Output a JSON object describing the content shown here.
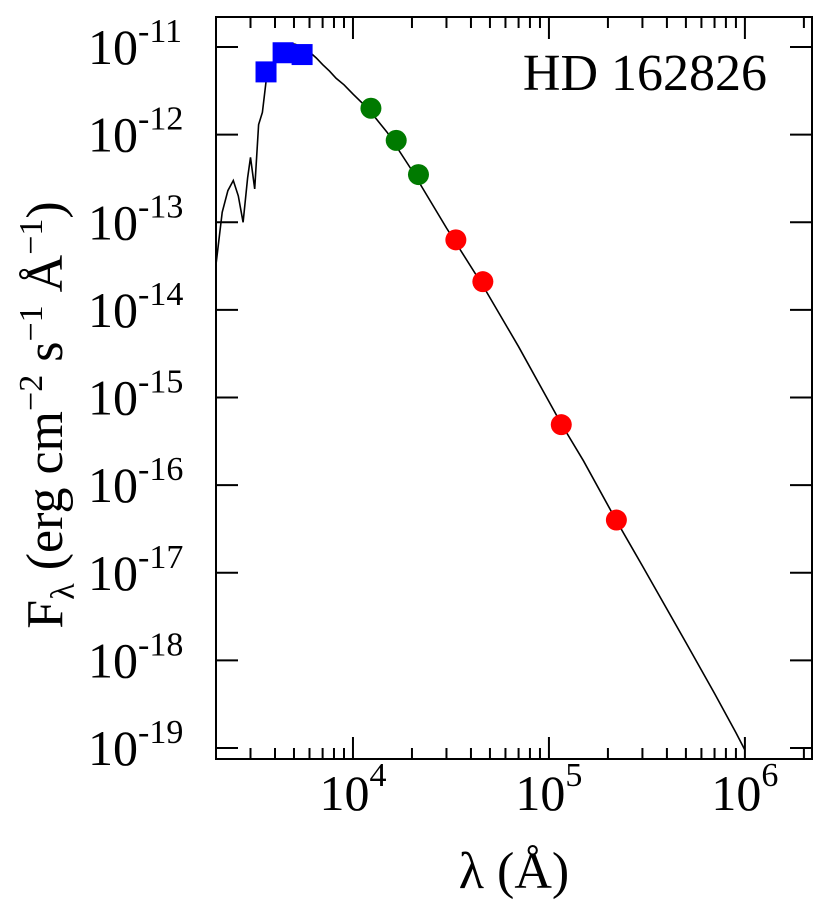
{
  "chart_data": {
    "type": "scatter",
    "title": "HD 162826",
    "xlabel": "λ (Å)",
    "ylabel": "F",
    "ylabel_sub": "λ",
    "ylabel_units": "(erg cm",
    "x_scale": "log",
    "y_scale": "log",
    "xlim": [
      2000,
      2200000
    ],
    "ylim": [
      7.5e-20,
      2.2e-11
    ],
    "grid": false,
    "x_ticks": [
      {
        "value": 10000,
        "base": "10",
        "exp": "4"
      },
      {
        "value": 100000,
        "base": "10",
        "exp": "5"
      },
      {
        "value": 1000000,
        "base": "10",
        "exp": "6"
      }
    ],
    "y_ticks": [
      {
        "value": 1e-11,
        "base": "10",
        "exp": "-11"
      },
      {
        "value": 1e-12,
        "base": "10",
        "exp": "-12"
      },
      {
        "value": 1e-13,
        "base": "10",
        "exp": "-13"
      },
      {
        "value": 1e-14,
        "base": "10",
        "exp": "-14"
      },
      {
        "value": 1e-15,
        "base": "10",
        "exp": "-15"
      },
      {
        "value": 1e-16,
        "base": "10",
        "exp": "-16"
      },
      {
        "value": 1e-17,
        "base": "10",
        "exp": "-17"
      },
      {
        "value": 1e-18,
        "base": "10",
        "exp": "-18"
      },
      {
        "value": 1e-19,
        "base": "10",
        "exp": "-19"
      }
    ],
    "colors": {
      "optical": "#0000ff",
      "near_ir": "#007a00",
      "mid_ir": "#ff0000",
      "model": "#000000"
    },
    "series": [
      {
        "marker": "square",
        "color": "#0000ff",
        "points": [
          {
            "x": 3600,
            "y": 5.2e-12
          },
          {
            "x": 4400,
            "y": 8.6e-12
          },
          {
            "x": 5500,
            "y": 8.2e-12
          }
        ]
      },
      {
        "marker": "circle",
        "color": "#007a00",
        "points": [
          {
            "x": 12350,
            "y": 2e-12
          },
          {
            "x": 16620,
            "y": 8.6e-13
          },
          {
            "x": 21590,
            "y": 3.5e-13
          }
        ]
      },
      {
        "marker": "circle",
        "color": "#ff0000",
        "points": [
          {
            "x": 33500,
            "y": 6.3e-14
          },
          {
            "x": 46000,
            "y": 2.1e-14
          },
          {
            "x": 115600,
            "y": 4.9e-16
          },
          {
            "x": 220900,
            "y": 4e-17
          }
        ]
      }
    ],
    "model_curve": [
      [
        2000,
        3.3e-14
      ],
      [
        2150,
        1.3e-13
      ],
      [
        2300,
        2.3e-13
      ],
      [
        2450,
        3e-13
      ],
      [
        2600,
        2e-13
      ],
      [
        2750,
        1e-13
      ],
      [
        2900,
        3.2e-13
      ],
      [
        3000,
        5.5e-13
      ],
      [
        3150,
        2.4e-13
      ],
      [
        3300,
        1.3e-12
      ],
      [
        3450,
        1.8e-12
      ],
      [
        3600,
        4e-12
      ],
      [
        3800,
        6e-12
      ],
      [
        4000,
        7.2e-12
      ],
      [
        4200,
        8.8e-12
      ],
      [
        4500,
        1.05e-11
      ],
      [
        4800,
        1.1e-11
      ],
      [
        5100,
        1.07e-11
      ],
      [
        5500,
        9.8e-12
      ],
      [
        6000,
        8.8e-12
      ],
      [
        6500,
        7.5e-12
      ],
      [
        7000,
        6.3e-12
      ],
      [
        7600,
        5.3e-12
      ],
      [
        8200,
        4.4e-12
      ],
      [
        9000,
        3.7e-12
      ],
      [
        10000,
        2.9e-12
      ],
      [
        12000,
        1.95e-12
      ],
      [
        15000,
        1.05e-12
      ],
      [
        20000,
        3.9e-13
      ],
      [
        30000,
        8.6e-14
      ],
      [
        46000,
        1.9e-14
      ],
      [
        70000,
        3.8e-15
      ],
      [
        115600,
        5e-16
      ],
      [
        150000,
        1.9e-16
      ],
      [
        220000,
        4e-17
      ],
      [
        300000,
        1.2e-17
      ],
      [
        500000,
        1.6e-18
      ],
      [
        700000,
        4.2e-19
      ],
      [
        900000,
        1.5e-19
      ],
      [
        1000000,
        9.5e-20
      ]
    ]
  }
}
